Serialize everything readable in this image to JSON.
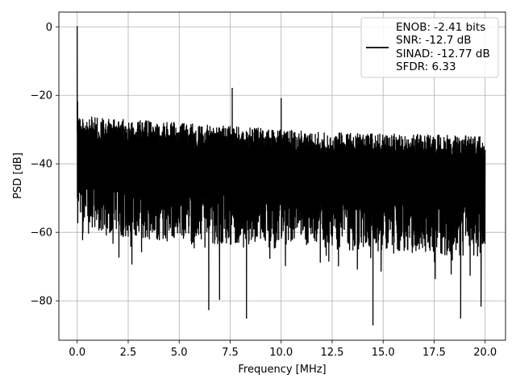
{
  "chart_data": {
    "type": "line",
    "title": "",
    "xlabel": "Frequency [MHz]",
    "ylabel": "PSD [dB]",
    "xlim": [
      -0.9,
      21.0
    ],
    "ylim": [
      -91.5,
      4.3
    ],
    "grid": true,
    "xticks": [
      0.0,
      2.5,
      5.0,
      7.5,
      10.0,
      12.5,
      15.0,
      17.5,
      20.0
    ],
    "xtick_labels": [
      "0.0",
      "2.5",
      "5.0",
      "7.5",
      "10.0",
      "12.5",
      "15.0",
      "17.5",
      "20.0"
    ],
    "yticks": [
      0,
      -20,
      -40,
      -60,
      -80
    ],
    "ytick_labels": [
      "0",
      "−20",
      "−40",
      "−60",
      "−80"
    ],
    "legend_position": "top-right",
    "legend": [
      "ENOB: -2.41 bits",
      "SNR: -12.7 dB",
      "SINAD: -12.77 dB",
      "SFDR: 6.33"
    ],
    "series": [
      {
        "color": "#000000",
        "x_range": [
          0.0,
          20.0
        ],
        "noise_upper_db": [
          [
            0.0,
            -26
          ],
          [
            2.5,
            -27
          ],
          [
            5.0,
            -28
          ],
          [
            7.5,
            -29
          ],
          [
            10.0,
            -30
          ],
          [
            12.5,
            -31
          ],
          [
            15.0,
            -31
          ],
          [
            17.5,
            -31.5
          ],
          [
            20.0,
            -32
          ]
        ],
        "noise_lower_db": [
          [
            0.0,
            -60
          ],
          [
            5.0,
            -63
          ],
          [
            10.0,
            -64
          ],
          [
            15.0,
            -66
          ],
          [
            20.0,
            -67
          ]
        ],
        "peaks": [
          {
            "x": 0.0,
            "y": 0
          },
          {
            "x": 0.02,
            "y": -22
          },
          {
            "x": 7.6,
            "y": -18
          },
          {
            "x": 10.0,
            "y": -21
          }
        ],
        "dips": [
          {
            "x": 6.45,
            "y": -82.5
          },
          {
            "x": 6.98,
            "y": -79.5
          },
          {
            "x": 8.3,
            "y": -85
          },
          {
            "x": 14.5,
            "y": -87
          },
          {
            "x": 18.8,
            "y": -85
          },
          {
            "x": 19.8,
            "y": -81.5
          }
        ]
      }
    ]
  }
}
